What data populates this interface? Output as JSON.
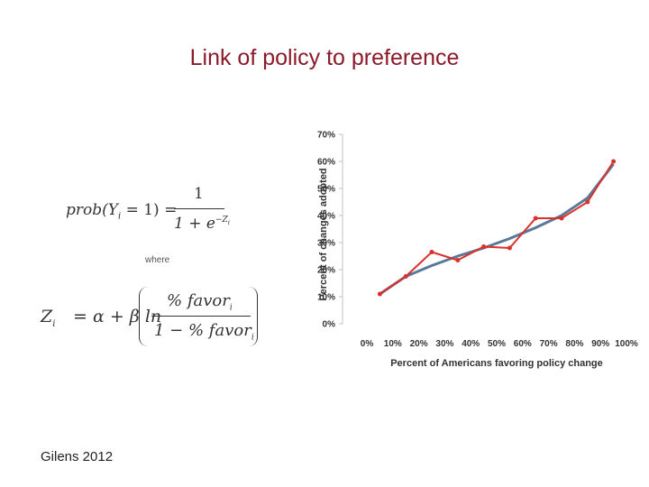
{
  "slide": {
    "title": "Link of policy to preference",
    "where_label": "where",
    "citation": "Gilens 2012"
  },
  "equations": {
    "eq1_lhs": "prob(Y",
    "eq1_sub": "i",
    "eq1_mid": " = 1) =",
    "eq1_num": "1",
    "eq1_den": "1 + e",
    "eq1_exp": "−Z",
    "eq1_exp_sub": "i",
    "eq2_lhs": "Z",
    "eq2_lhs_sub": "i",
    "eq2_mid": "= α + β ln",
    "eq2_num": "% favor",
    "eq2_num_sub": "i",
    "eq2_den": "1 − % favor",
    "eq2_den_sub": "i"
  },
  "colors": {
    "title": "#8b1a2b",
    "observed": "#d9312b",
    "fitted": "#5a7898",
    "axis": "#c0c0c0"
  },
  "chart_data": {
    "type": "line",
    "xlabel": "Percent of Americans favoring policy change",
    "ylabel": "Percent of changes adopted",
    "x_ticks": [
      "0%",
      "10%",
      "20%",
      "30%",
      "40%",
      "50%",
      "60%",
      "70%",
      "80%",
      "90%",
      "100%"
    ],
    "y_ticks": [
      "0%",
      "10%",
      "20%",
      "30%",
      "40%",
      "50%",
      "60%",
      "70%"
    ],
    "xlim": [
      0,
      100
    ],
    "ylim": [
      0,
      70
    ],
    "series": [
      {
        "role": "observed",
        "x": [
          5,
          15,
          25,
          35,
          45,
          55,
          65,
          75,
          85,
          95
        ],
        "y": [
          11,
          17.5,
          26.5,
          23.5,
          28.5,
          28,
          39,
          39,
          45,
          60
        ]
      },
      {
        "role": "fitted",
        "x": [
          5,
          15,
          25,
          35,
          45,
          55,
          65,
          75,
          85,
          95
        ],
        "y": [
          11,
          17.5,
          21.5,
          25,
          28,
          31.5,
          35.5,
          40,
          46.5,
          59
        ]
      }
    ]
  }
}
